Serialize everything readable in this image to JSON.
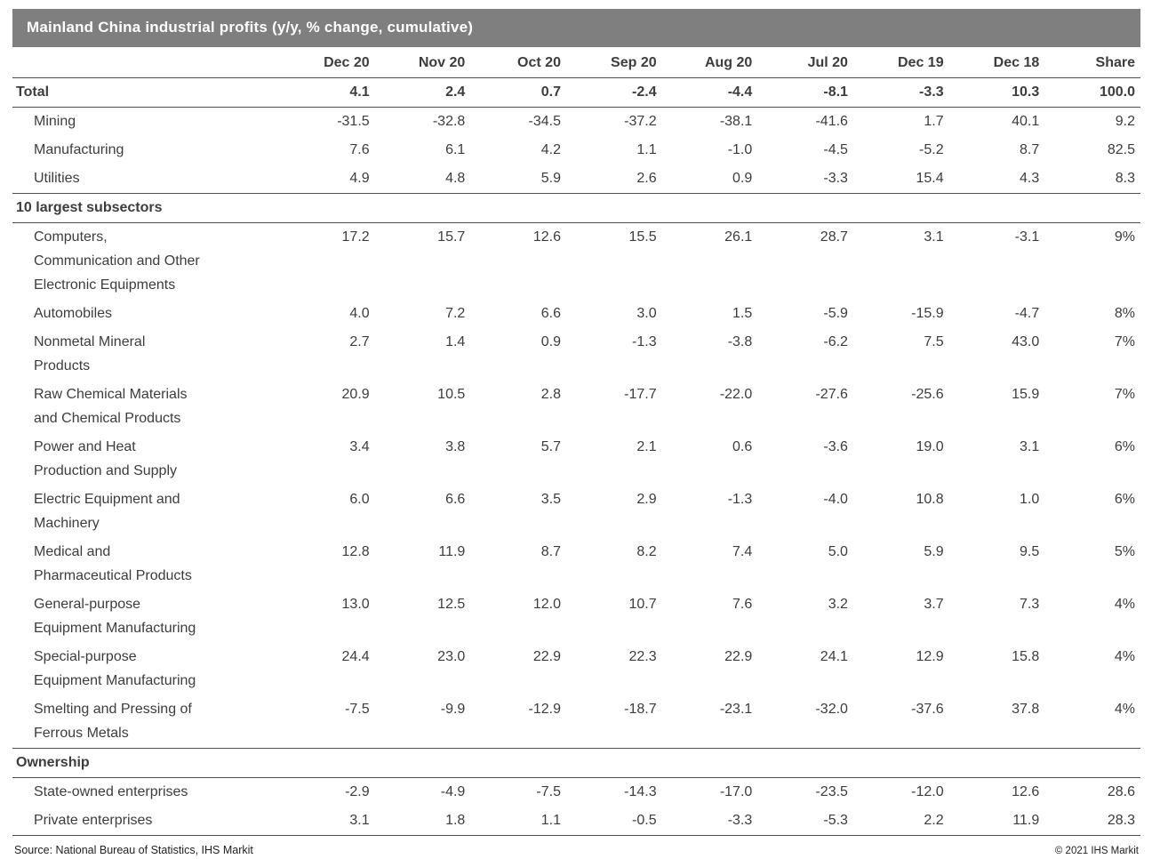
{
  "title": "Mainland China industrial profits (y/y, % change, cumulative)",
  "colors": {
    "title_bar_bg": "#7f7f7f",
    "title_bar_text": "#ffffff",
    "rule": "#4d4d4d",
    "body_text": "#3d3d3d"
  },
  "footer": {
    "source": "Source: National Bureau of Statistics, IHS Markit",
    "copyright": "© 2021 IHS Markit"
  },
  "chart_data": {
    "type": "table",
    "title": "Mainland China industrial profits (y/y, % change, cumulative)",
    "columns": [
      "",
      "Dec 20",
      "Nov 20",
      "Oct 20",
      "Sep 20",
      "Aug 20",
      "Jul 20",
      "Dec 19",
      "Dec 18",
      "Share"
    ],
    "rows": [
      {
        "label": "Total",
        "style": "total",
        "rule_below": true,
        "values": [
          "4.1",
          "2.4",
          "0.7",
          "-2.4",
          "-4.4",
          "-8.1",
          "-3.3",
          "10.3",
          "100.0"
        ]
      },
      {
        "label": "Mining",
        "style": "data",
        "rule_below": false,
        "values": [
          "-31.5",
          "-32.8",
          "-34.5",
          "-37.2",
          "-38.1",
          "-41.6",
          "1.7",
          "40.1",
          "9.2"
        ]
      },
      {
        "label": "Manufacturing",
        "style": "data",
        "rule_below": false,
        "values": [
          "7.6",
          "6.1",
          "4.2",
          "1.1",
          "-1.0",
          "-4.5",
          "-5.2",
          "8.7",
          "82.5"
        ]
      },
      {
        "label": "Utilities",
        "style": "data",
        "rule_below": true,
        "values": [
          "4.9",
          "4.8",
          "5.9",
          "2.6",
          "0.9",
          "-3.3",
          "15.4",
          "4.3",
          "8.3"
        ]
      },
      {
        "label": "10 largest subsectors",
        "style": "section",
        "rule_below": true,
        "values": []
      },
      {
        "label": "Computers,\nCommunication and Other\nElectronic Equipments",
        "style": "data",
        "rule_below": false,
        "values": [
          "17.2",
          "15.7",
          "12.6",
          "15.5",
          "26.1",
          "28.7",
          "3.1",
          "-3.1",
          "9%"
        ]
      },
      {
        "label": "Automobiles",
        "style": "data",
        "rule_below": false,
        "values": [
          "4.0",
          "7.2",
          "6.6",
          "3.0",
          "1.5",
          "-5.9",
          "-15.9",
          "-4.7",
          "8%"
        ]
      },
      {
        "label": "Nonmetal Mineral\nProducts",
        "style": "data",
        "rule_below": false,
        "values": [
          "2.7",
          "1.4",
          "0.9",
          "-1.3",
          "-3.8",
          "-6.2",
          "7.5",
          "43.0",
          "7%"
        ]
      },
      {
        "label": "Raw Chemical Materials\nand Chemical Products",
        "style": "data",
        "rule_below": false,
        "values": [
          "20.9",
          "10.5",
          "2.8",
          "-17.7",
          "-22.0",
          "-27.6",
          "-25.6",
          "15.9",
          "7%"
        ]
      },
      {
        "label": "Power and Heat\nProduction and Supply",
        "style": "data",
        "rule_below": false,
        "values": [
          "3.4",
          "3.8",
          "5.7",
          "2.1",
          "0.6",
          "-3.6",
          "19.0",
          "3.1",
          "6%"
        ]
      },
      {
        "label": "Electric Equipment and\nMachinery",
        "style": "data",
        "rule_below": false,
        "values": [
          "6.0",
          "6.6",
          "3.5",
          "2.9",
          "-1.3",
          "-4.0",
          "10.8",
          "1.0",
          "6%"
        ]
      },
      {
        "label": "Medical and\nPharmaceutical Products",
        "style": "data",
        "rule_below": false,
        "values": [
          "12.8",
          "11.9",
          "8.7",
          "8.2",
          "7.4",
          "5.0",
          "5.9",
          "9.5",
          "5%"
        ]
      },
      {
        "label": "General-purpose\nEquipment Manufacturing",
        "style": "data",
        "rule_below": false,
        "values": [
          "13.0",
          "12.5",
          "12.0",
          "10.7",
          "7.6",
          "3.2",
          "3.7",
          "7.3",
          "4%"
        ]
      },
      {
        "label": "Special-purpose\nEquipment Manufacturing",
        "style": "data",
        "rule_below": false,
        "values": [
          "24.4",
          "23.0",
          "22.9",
          "22.3",
          "22.9",
          "24.1",
          "12.9",
          "15.8",
          "4%"
        ]
      },
      {
        "label": "Smelting and Pressing of\nFerrous Metals",
        "style": "data",
        "rule_below": true,
        "values": [
          "-7.5",
          "-9.9",
          "-12.9",
          "-18.7",
          "-23.1",
          "-32.0",
          "-37.6",
          "37.8",
          "4%"
        ]
      },
      {
        "label": "Ownership",
        "style": "section",
        "rule_below": true,
        "values": []
      },
      {
        "label": "State-owned enterprises",
        "style": "data",
        "rule_below": false,
        "values": [
          "-2.9",
          "-4.9",
          "-7.5",
          "-14.3",
          "-17.0",
          "-23.5",
          "-12.0",
          "12.6",
          "28.6"
        ]
      },
      {
        "label": "Private enterprises",
        "style": "data",
        "rule_below": true,
        "values": [
          "3.1",
          "1.8",
          "1.1",
          "-0.5",
          "-3.3",
          "-5.3",
          "2.2",
          "11.9",
          "28.3"
        ]
      }
    ]
  }
}
